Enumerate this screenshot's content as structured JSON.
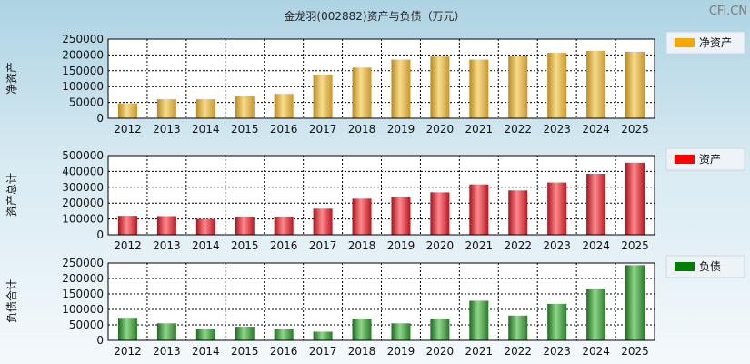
{
  "title": "金龙羽(002882)资产与负债（万元）",
  "watermark": "CFi.CN",
  "chart_data": [
    {
      "type": "bar",
      "ylabel": "净资产",
      "legend": "净资产",
      "legend_placement": "right",
      "color": "#f5a800",
      "bar_gradient": [
        "#b98a1e",
        "#f7dc8e",
        "#c9962c"
      ],
      "categories": [
        "2012",
        "2013",
        "2014",
        "2015",
        "2016",
        "2017",
        "2018",
        "2019",
        "2020",
        "2021",
        "2022",
        "2023",
        "2024",
        "2025"
      ],
      "values": [
        47000,
        60000,
        60000,
        69000,
        77000,
        138000,
        160000,
        185000,
        195000,
        185000,
        198000,
        207000,
        213000,
        210000
      ],
      "ylim": [
        0,
        250000
      ],
      "yticks": [
        "0",
        "50000",
        "100000",
        "150000",
        "200000",
        "250000"
      ],
      "grid": true
    },
    {
      "type": "bar",
      "ylabel": "资产总计",
      "legend": "资产",
      "legend_placement": "right",
      "color": "#ff0000",
      "bar_gradient": [
        "#a8121c",
        "#ff8a8e",
        "#b9161f"
      ],
      "categories": [
        "2012",
        "2013",
        "2014",
        "2015",
        "2016",
        "2017",
        "2018",
        "2019",
        "2020",
        "2021",
        "2022",
        "2023",
        "2024",
        "2025"
      ],
      "values": [
        120000,
        118000,
        100000,
        112000,
        112000,
        165000,
        228000,
        238000,
        268000,
        318000,
        280000,
        330000,
        385000,
        455000
      ],
      "ylim": [
        0,
        500000
      ],
      "yticks": [
        "0",
        "100000",
        "200000",
        "300000",
        "400000",
        "500000"
      ],
      "grid": true
    },
    {
      "type": "bar",
      "ylabel": "负债合计",
      "legend": "负债",
      "legend_placement": "right",
      "color": "#008000",
      "bar_gradient": [
        "#1e6a20",
        "#8fd68a",
        "#2a7a2a"
      ],
      "categories": [
        "2012",
        "2013",
        "2014",
        "2015",
        "2016",
        "2017",
        "2018",
        "2019",
        "2020",
        "2021",
        "2022",
        "2023",
        "2024",
        "2025"
      ],
      "values": [
        73000,
        55000,
        38000,
        44000,
        38000,
        28000,
        70000,
        55000,
        70000,
        128000,
        80000,
        118000,
        165000,
        243000
      ],
      "ylim": [
        0,
        250000
      ],
      "yticks": [
        "0",
        "50000",
        "100000",
        "150000",
        "200000",
        "250000"
      ],
      "grid": true
    }
  ]
}
